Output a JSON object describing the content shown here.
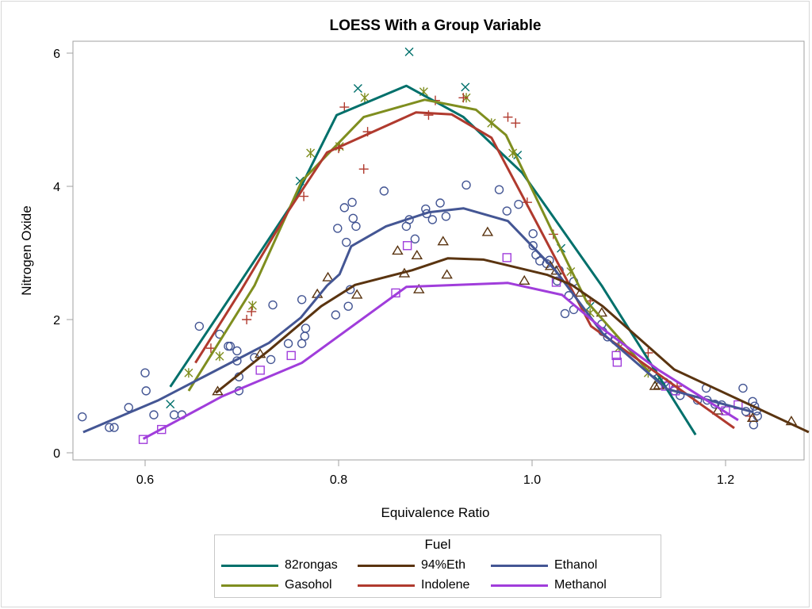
{
  "chart_data": {
    "type": "scatter",
    "title": "LOESS With a Group Variable",
    "xlabel": "Equivalence Ratio",
    "ylabel": "Nitrogen Oxide",
    "xlim": [
      0.525,
      1.28
    ],
    "ylim": [
      -0.1,
      6.1
    ],
    "xticks": [
      "0.6",
      "0.8",
      "1.0",
      "1.2"
    ],
    "xtick_values": [
      0.6,
      0.8,
      1.0,
      1.2
    ],
    "yticks": [
      "0",
      "2",
      "4",
      "6"
    ],
    "ytick_values": [
      0,
      2,
      4,
      6
    ],
    "grid": false,
    "legend": {
      "title": "Fuel",
      "placement": "bottom",
      "entries": [
        "82rongas",
        "94%Eth",
        "Ethanol",
        "Gasohol",
        "Indolene",
        "Methanol"
      ]
    },
    "series": [
      {
        "name": "82rongas",
        "color": "#00706b",
        "marker": "x",
        "loess": [
          [
            0.626,
            0.99
          ],
          [
            0.696,
            2.51
          ],
          [
            0.753,
            3.76
          ],
          [
            0.798,
            5.07
          ],
          [
            0.87,
            5.51
          ],
          [
            0.929,
            5.04
          ],
          [
            0.99,
            4.2
          ],
          [
            1.072,
            2.51
          ],
          [
            1.169,
            0.27
          ]
        ],
        "points": [
          [
            0.626,
            0.73
          ],
          [
            0.76,
            4.08
          ],
          [
            0.82,
            5.47
          ],
          [
            0.873,
            6.02
          ],
          [
            0.931,
            5.49
          ],
          [
            0.985,
            4.47
          ],
          [
            1.03,
            3.07
          ],
          [
            1.06,
            2.2
          ],
          [
            1.13,
            1.1
          ]
        ]
      },
      {
        "name": "Gasohol",
        "color": "#7f8e1f",
        "marker": "asterisk",
        "loess": [
          [
            0.645,
            0.93
          ],
          [
            0.713,
            2.51
          ],
          [
            0.762,
            4.08
          ],
          [
            0.826,
            5.04
          ],
          [
            0.889,
            5.3
          ],
          [
            0.942,
            5.15
          ],
          [
            0.973,
            4.77
          ],
          [
            1.02,
            3.35
          ],
          [
            1.056,
            2.28
          ],
          [
            1.121,
            1.21
          ]
        ],
        "points": [
          [
            0.645,
            1.2
          ],
          [
            0.677,
            1.45
          ],
          [
            0.711,
            2.21
          ],
          [
            0.771,
            4.5
          ],
          [
            0.801,
            4.6
          ],
          [
            0.827,
            5.33
          ],
          [
            0.888,
            5.42
          ],
          [
            0.932,
            5.33
          ],
          [
            0.958,
            4.95
          ],
          [
            0.98,
            4.5
          ],
          [
            1.04,
            2.72
          ],
          [
            1.06,
            2.1
          ],
          [
            1.09,
            1.58
          ],
          [
            1.12,
            1.2
          ]
        ]
      },
      {
        "name": "Indolene",
        "color": "#b03a2e",
        "marker": "plus",
        "loess": [
          [
            0.652,
            1.35
          ],
          [
            0.7,
            2.46
          ],
          [
            0.749,
            3.65
          ],
          [
            0.788,
            4.51
          ],
          [
            0.88,
            5.11
          ],
          [
            0.917,
            5.08
          ],
          [
            0.958,
            4.73
          ],
          [
            1.003,
            3.5
          ],
          [
            1.061,
            1.9
          ],
          [
            1.209,
            0.37
          ]
        ],
        "points": [
          [
            0.668,
            1.57
          ],
          [
            0.705,
            2.0
          ],
          [
            0.71,
            2.12
          ],
          [
            0.764,
            3.85
          ],
          [
            0.8,
            4.57
          ],
          [
            0.806,
            5.19
          ],
          [
            0.826,
            4.26
          ],
          [
            0.83,
            4.82
          ],
          [
            0.9,
            5.29
          ],
          [
            0.893,
            5.07
          ],
          [
            0.929,
            5.33
          ],
          [
            0.975,
            5.04
          ],
          [
            0.983,
            4.95
          ],
          [
            0.995,
            3.76
          ],
          [
            1.022,
            3.28
          ],
          [
            1.06,
            2.28
          ],
          [
            1.12,
            1.5
          ],
          [
            1.15,
            1.0
          ],
          [
            1.225,
            0.55
          ]
        ]
      },
      {
        "name": "Ethanol",
        "color": "#445694",
        "marker": "circle",
        "loess": [
          [
            0.536,
            0.31
          ],
          [
            0.614,
            0.79
          ],
          [
            0.728,
            1.65
          ],
          [
            0.761,
            2.03
          ],
          [
            0.788,
            2.51
          ],
          [
            0.801,
            2.68
          ],
          [
            0.813,
            3.1
          ],
          [
            0.849,
            3.4
          ],
          [
            0.893,
            3.61
          ],
          [
            0.929,
            3.67
          ],
          [
            0.975,
            3.48
          ],
          [
            1.024,
            2.74
          ],
          [
            1.073,
            1.79
          ],
          [
            1.139,
            0.96
          ],
          [
            1.229,
            0.61
          ]
        ],
        "points": [
          [
            0.535,
            0.54
          ],
          [
            0.563,
            0.38
          ],
          [
            0.568,
            0.38
          ],
          [
            0.583,
            0.68
          ],
          [
            0.6,
            1.2
          ],
          [
            0.601,
            0.93
          ],
          [
            0.609,
            0.57
          ],
          [
            0.63,
            0.57
          ],
          [
            0.638,
            0.57
          ],
          [
            0.656,
            1.9
          ],
          [
            0.677,
            1.78
          ],
          [
            0.686,
            1.6
          ],
          [
            0.688,
            1.6
          ],
          [
            0.695,
            1.53
          ],
          [
            0.695,
            1.38
          ],
          [
            0.697,
            0.93
          ],
          [
            0.697,
            1.14
          ],
          [
            0.713,
            1.43
          ],
          [
            0.73,
            1.4
          ],
          [
            0.732,
            2.22
          ],
          [
            0.748,
            1.64
          ],
          [
            0.762,
            2.3
          ],
          [
            0.762,
            1.64
          ],
          [
            0.765,
            1.75
          ],
          [
            0.766,
            1.87
          ],
          [
            0.797,
            2.07
          ],
          [
            0.799,
            3.37
          ],
          [
            0.806,
            3.68
          ],
          [
            0.808,
            3.16
          ],
          [
            0.81,
            2.2
          ],
          [
            0.812,
            2.45
          ],
          [
            0.814,
            3.76
          ],
          [
            0.815,
            3.52
          ],
          [
            0.818,
            3.4
          ],
          [
            0.847,
            3.93
          ],
          [
            0.87,
            3.4
          ],
          [
            0.873,
            3.5
          ],
          [
            0.879,
            3.21
          ],
          [
            0.89,
            3.66
          ],
          [
            0.891,
            3.59
          ],
          [
            0.897,
            3.5
          ],
          [
            0.905,
            3.75
          ],
          [
            0.911,
            3.55
          ],
          [
            0.932,
            4.02
          ],
          [
            0.966,
            3.95
          ],
          [
            0.974,
            3.63
          ],
          [
            0.986,
            3.73
          ],
          [
            1.001,
            3.29
          ],
          [
            1.001,
            3.11
          ],
          [
            1.004,
            2.97
          ],
          [
            1.008,
            2.88
          ],
          [
            1.015,
            2.84
          ],
          [
            1.018,
            2.89
          ],
          [
            1.026,
            2.58
          ],
          [
            1.028,
            2.74
          ],
          [
            1.034,
            2.09
          ],
          [
            1.038,
            2.36
          ],
          [
            1.043,
            2.57
          ],
          [
            1.043,
            2.15
          ],
          [
            1.072,
            1.93
          ],
          [
            1.073,
            1.82
          ],
          [
            1.078,
            1.74
          ],
          [
            1.086,
            1.69
          ],
          [
            1.125,
            1.21
          ],
          [
            1.137,
            1.06
          ],
          [
            1.141,
            1.02
          ],
          [
            1.147,
            0.93
          ],
          [
            1.153,
            0.86
          ],
          [
            1.171,
            0.79
          ],
          [
            1.18,
            0.97
          ],
          [
            1.181,
            0.79
          ],
          [
            1.189,
            0.73
          ],
          [
            1.196,
            0.72
          ],
          [
            1.218,
            0.97
          ],
          [
            1.221,
            0.62
          ],
          [
            1.228,
            0.77
          ],
          [
            1.229,
            0.42
          ],
          [
            1.23,
            0.7
          ],
          [
            1.232,
            0.63
          ],
          [
            1.233,
            0.55
          ]
        ]
      },
      {
        "name": "94%Eth",
        "color": "#5a3410",
        "marker": "triangle",
        "loess": [
          [
            0.673,
            0.9
          ],
          [
            0.729,
            1.55
          ],
          [
            0.782,
            2.2
          ],
          [
            0.817,
            2.52
          ],
          [
            0.876,
            2.74
          ],
          [
            0.913,
            2.92
          ],
          [
            0.95,
            2.9
          ],
          [
            1.016,
            2.67
          ],
          [
            1.041,
            2.52
          ],
          [
            1.073,
            2.2
          ],
          [
            1.147,
            1.25
          ],
          [
            1.286,
            0.31
          ]
        ],
        "points": [
          [
            0.675,
            0.92
          ],
          [
            0.719,
            1.48
          ],
          [
            0.778,
            2.38
          ],
          [
            0.789,
            2.63
          ],
          [
            0.819,
            2.37
          ],
          [
            0.861,
            3.03
          ],
          [
            0.868,
            2.69
          ],
          [
            0.881,
            2.96
          ],
          [
            0.883,
            2.45
          ],
          [
            0.908,
            3.17
          ],
          [
            0.912,
            2.67
          ],
          [
            0.954,
            3.31
          ],
          [
            0.992,
            2.58
          ],
          [
            1.019,
            2.8
          ],
          [
            1.025,
            2.73
          ],
          [
            1.05,
            2.4
          ],
          [
            1.072,
            2.1
          ],
          [
            1.127,
            1.0
          ],
          [
            1.131,
            1.01
          ],
          [
            1.192,
            0.63
          ],
          [
            1.228,
            0.52
          ],
          [
            1.268,
            0.47
          ]
        ]
      },
      {
        "name": "Methanol",
        "color": "#a03ddb",
        "marker": "square",
        "loess": [
          [
            0.598,
            0.21
          ],
          [
            0.68,
            0.85
          ],
          [
            0.762,
            1.35
          ],
          [
            0.87,
            2.49
          ],
          [
            0.975,
            2.55
          ],
          [
            1.031,
            2.37
          ],
          [
            1.072,
            1.87
          ],
          [
            1.131,
            1.24
          ],
          [
            1.213,
            0.49
          ]
        ],
        "points": [
          [
            0.598,
            0.2
          ],
          [
            0.617,
            0.35
          ],
          [
            0.719,
            1.24
          ],
          [
            0.751,
            1.46
          ],
          [
            0.859,
            2.4
          ],
          [
            0.871,
            3.11
          ],
          [
            0.974,
            2.93
          ],
          [
            1.025,
            2.56
          ],
          [
            1.087,
            1.46
          ],
          [
            1.088,
            1.36
          ],
          [
            1.138,
            1.0
          ],
          [
            1.148,
            0.93
          ],
          [
            1.2,
            0.63
          ],
          [
            1.213,
            0.72
          ]
        ]
      }
    ]
  }
}
